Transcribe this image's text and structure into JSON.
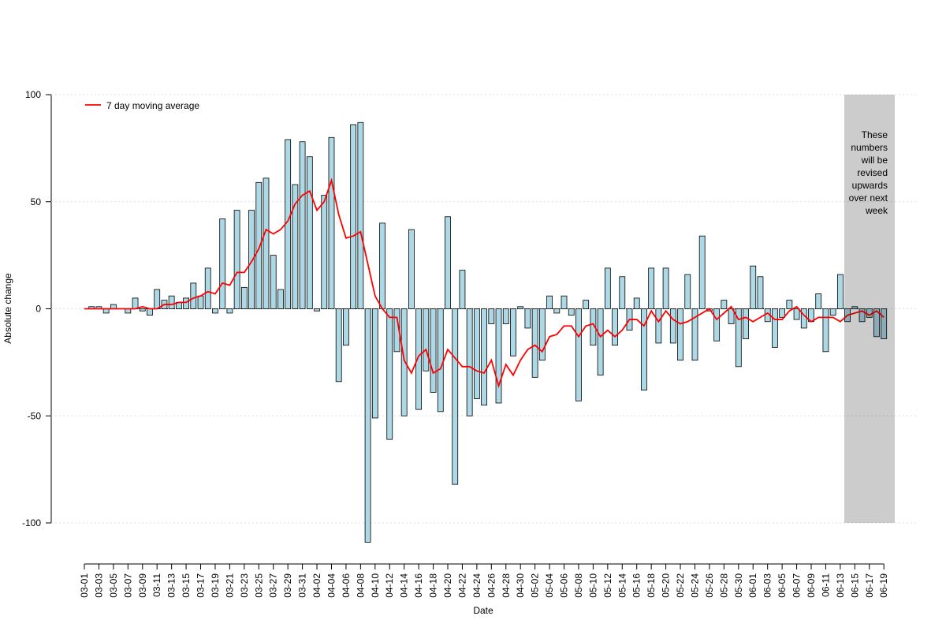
{
  "chart_data": {
    "type": "bar",
    "x_label": "Date",
    "y_label": "Absolute change",
    "annotation": [
      "These",
      "numbers",
      "will be",
      "revised",
      "upwards",
      "over next",
      "week"
    ],
    "ylim": [
      -100,
      100
    ],
    "yticks": [
      -100,
      -50,
      0,
      50,
      100
    ],
    "grid": true,
    "legend": "top-left",
    "categories": [
      "03-01",
      null,
      "03-03",
      null,
      "03-05",
      null,
      "03-07",
      null,
      "03-09",
      null,
      "03-11",
      null,
      "03-13",
      null,
      "03-15",
      null,
      "03-17",
      null,
      "03-19",
      null,
      "03-21",
      null,
      "03-23",
      null,
      "03-25",
      null,
      "03-27",
      null,
      "03-29",
      null,
      "03-31",
      null,
      "04-02",
      null,
      "04-04",
      null,
      "04-06",
      null,
      "04-08",
      null,
      "04-10",
      null,
      "04-12",
      null,
      "04-14",
      null,
      "04-16",
      null,
      "04-18",
      null,
      "04-20",
      null,
      "04-22",
      null,
      "04-24",
      null,
      "04-26",
      null,
      "04-28",
      null,
      "04-30",
      null,
      "05-02",
      null,
      "05-04",
      null,
      "05-06",
      null,
      "05-08",
      null,
      "05-10",
      null,
      "05-12",
      null,
      "05-14",
      null,
      "05-16",
      null,
      "05-18",
      null,
      "05-20",
      null,
      "05-22",
      null,
      "05-24",
      null,
      "05-26",
      null,
      "05-28",
      null,
      "05-30",
      null,
      "06-01",
      null,
      "06-03",
      null,
      "06-05",
      null,
      "06-07",
      null,
      "06-09",
      null,
      "06-11",
      null,
      "06-13",
      null,
      "06-15",
      null,
      "06-17",
      null,
      "06-19"
    ],
    "series": [
      {
        "name": null,
        "type": "bar",
        "color": "#add8e6",
        "values": [
          0,
          1,
          1,
          -2,
          2,
          0,
          -2,
          5,
          -1,
          -3,
          9,
          4,
          6,
          3,
          5,
          12,
          6,
          19,
          -2,
          42,
          -2,
          46,
          10,
          46,
          59,
          61,
          25,
          9,
          79,
          58,
          78,
          71,
          -1,
          53,
          80,
          -34,
          -17,
          86,
          87,
          -109,
          -51,
          40,
          -61,
          -20,
          -50,
          37,
          -47,
          -29,
          -39,
          -48,
          43,
          -82,
          18,
          -50,
          -42,
          -45,
          -7,
          -44,
          -7,
          -22,
          1,
          -9,
          -32,
          -24,
          6,
          -2,
          6,
          -3,
          -43,
          4,
          -17,
          -31,
          19,
          -17,
          15,
          -10,
          5,
          -38,
          19,
          -16,
          19,
          -16,
          -24,
          16,
          -24,
          34,
          -1,
          -15,
          4,
          -7,
          -27,
          -14,
          20,
          15,
          -6,
          -18,
          -4,
          4,
          -5,
          -9,
          -6,
          7,
          -20,
          -3,
          16,
          -6,
          1,
          -6,
          -4,
          -13,
          -14
        ]
      },
      {
        "name": "7 day moving average",
        "type": "line",
        "color": "#ff0000",
        "values": [
          0,
          0,
          0,
          0,
          0,
          0,
          0,
          0,
          1,
          0,
          0,
          2,
          2,
          3,
          3,
          5,
          6,
          8,
          7,
          12,
          11,
          17,
          17,
          22,
          28,
          37,
          35,
          37,
          41,
          49,
          53,
          55,
          46,
          50,
          60,
          44,
          33,
          34,
          36,
          21,
          6,
          0,
          -4,
          -4,
          -24,
          -30,
          -22,
          -19,
          -30,
          -28,
          -19,
          -23,
          -27,
          -27,
          -29,
          -30,
          -24,
          -36,
          -26,
          -31,
          -24,
          -19,
          -17,
          -20,
          -13,
          -12,
          -8,
          -8,
          -13,
          -8,
          -7,
          -13,
          -10,
          -13,
          -10,
          -5,
          -5,
          -8,
          -1,
          -6,
          -1,
          -5,
          -7,
          -6,
          -4,
          -2,
          0,
          -5,
          -2,
          1,
          -5,
          -4,
          -6,
          -4,
          -2,
          -5,
          -5,
          -1,
          1,
          -3,
          -6,
          -4,
          -4,
          -4,
          -6,
          -3,
          -2,
          -1,
          -3,
          -1,
          -4
        ]
      }
    ]
  }
}
